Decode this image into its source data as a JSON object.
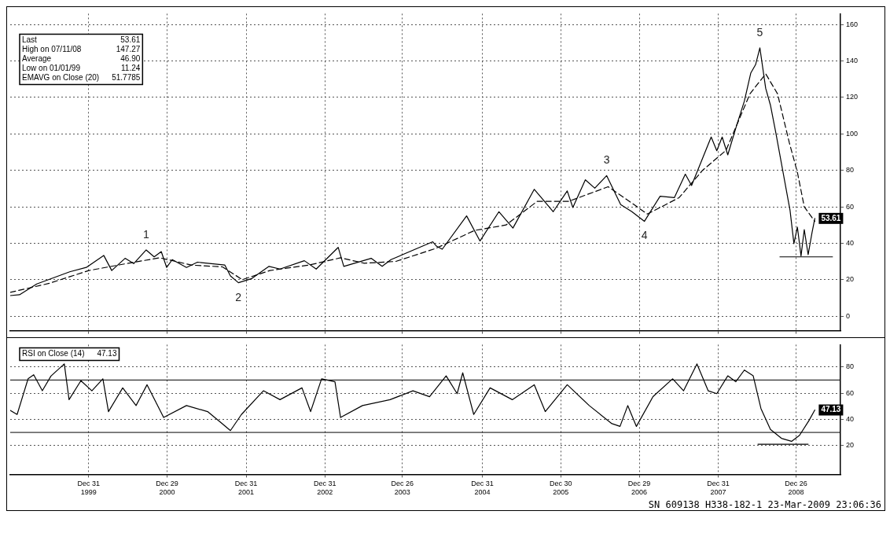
{
  "chart_data": [
    {
      "type": "line",
      "marker": "none",
      "grid": true,
      "legend": false,
      "tick_labels": "y",
      "xlim": [
        "1999-01-01",
        "2009-07-20"
      ],
      "ylim": [
        -8,
        166
      ],
      "xticks": [
        {
          "value": "1999-12-31",
          "label": null
        },
        {
          "value": "2000-12-29",
          "label": null
        },
        {
          "value": "2001-12-31",
          "label": null
        },
        {
          "value": "2002-12-31",
          "label": null
        },
        {
          "value": "2003-12-26",
          "label": null
        },
        {
          "value": "2004-12-31",
          "label": null
        },
        {
          "value": "2005-12-30",
          "label": null
        },
        {
          "value": "2006-12-29",
          "label": null
        },
        {
          "value": "2007-12-31",
          "label": null
        },
        {
          "value": "2008-12-26",
          "label": null
        }
      ],
      "yticks": [
        0,
        20,
        40,
        60,
        80,
        100,
        120,
        140,
        160
      ],
      "series": [
        {
          "color": "#000000",
          "line_style": "solid",
          "x": [
            "1999-01-01",
            "1999-02-13",
            "1999-05-04",
            "1999-10-04",
            "1999-12-20",
            "2000-03-10",
            "2000-04-16",
            "2000-06-17",
            "2000-07-27",
            "2000-09-23",
            "2000-10-30",
            "2000-12-02",
            "2000-12-27",
            "2001-01-22",
            "2001-03-29",
            "2001-05-19",
            "2001-09-23",
            "2001-10-19",
            "2001-11-25",
            "2002-01-26",
            "2002-04-16",
            "2002-06-06",
            "2002-09-27",
            "2002-11-21",
            "2003-03-03",
            "2003-03-29",
            "2003-08-03",
            "2003-09-23",
            "2003-11-03",
            "2004-05-15",
            "2004-06-02",
            "2004-06-28",
            "2004-10-19",
            "2004-12-20",
            "2005-03-18",
            "2005-05-22",
            "2005-08-29",
            "2005-11-25",
            "2006-01-29",
            "2006-02-24",
            "2006-04-23",
            "2006-06-06",
            "2006-07-31",
            "2006-10-04",
            "2006-11-25",
            "2007-01-22",
            "2007-04-05",
            "2007-06-10",
            "2007-07-31",
            "2007-08-29",
            "2007-11-28",
            "2007-12-24",
            "2008-01-18",
            "2008-02-13",
            "2008-03-25",
            "2008-04-30",
            "2008-05-30",
            "2008-06-21",
            "2008-07-11",
            "2008-08-07",
            "2008-08-29",
            "2008-09-23",
            "2008-11-28",
            "2008-12-16",
            "2009-01-01",
            "2009-01-18",
            "2009-02-02",
            "2009-02-20",
            "2009-03-10",
            "2009-03-23"
          ],
          "values": [
            11.24,
            11.7,
            17.6,
            24.3,
            26.7,
            33.3,
            25,
            31.7,
            28.8,
            36.3,
            32.5,
            35.4,
            26.7,
            31,
            26.7,
            29.6,
            28,
            22,
            18.3,
            20.6,
            27.3,
            25.8,
            30.4,
            25.8,
            37.7,
            27.3,
            31.7,
            27.3,
            31,
            40.8,
            38.3,
            36.7,
            55,
            41.2,
            57.3,
            48.3,
            69.6,
            57.3,
            68.7,
            59.6,
            74.8,
            70.2,
            77.1,
            61.2,
            57.3,
            52,
            65.8,
            65,
            77.9,
            71.7,
            98.3,
            90.8,
            98.3,
            88.5,
            104.6,
            118,
            133.5,
            138,
            147.27,
            125,
            115.8,
            100.6,
            58,
            39.8,
            48.9,
            33,
            47.5,
            33.7,
            45.8,
            53.61
          ],
          "value_labels": [
            null,
            null,
            null,
            null,
            null,
            null,
            null,
            null,
            null,
            null,
            null,
            null,
            null,
            null,
            null,
            null,
            null,
            null,
            null,
            null,
            null,
            null,
            null,
            null,
            null,
            null,
            null,
            null,
            null,
            null,
            null,
            null,
            null,
            null,
            null,
            null,
            null,
            null,
            null,
            null,
            null,
            null,
            null,
            null,
            null,
            null,
            null,
            null,
            null,
            null,
            null,
            null,
            null,
            null,
            null,
            null,
            null,
            null,
            null,
            null,
            null,
            null,
            null,
            null,
            null,
            null,
            null,
            null,
            null,
            "53.61"
          ]
        },
        {
          "color": "#000000",
          "line_style": "dashed",
          "x": [
            "1999-01-01",
            "1999-07-02",
            "2000-01-01",
            "2000-07-02",
            "2000-11-25",
            "2001-04-20",
            "2001-09-12",
            "2001-12-13",
            "2002-04-20",
            "2002-10-19",
            "2003-03-14",
            "2003-07-02",
            "2003-11-25",
            "2004-05-26",
            "2004-11-25",
            "2005-04-20",
            "2005-09-12",
            "2006-02-05",
            "2006-08-07",
            "2006-11-25",
            "2007-02-05",
            "2007-07-02",
            "2007-10-19",
            "2008-02-05",
            "2008-05-26",
            "2008-08-07",
            "2008-10-01",
            "2008-11-25",
            "2009-01-01",
            "2009-02-02",
            "2009-03-23"
          ],
          "values": [
            13,
            18,
            25,
            29,
            32,
            28,
            27,
            20,
            25,
            28,
            32,
            29,
            30,
            37,
            47,
            50,
            63,
            63,
            71,
            62,
            56,
            65,
            80,
            91,
            122,
            133,
            122,
            95,
            79,
            60,
            52
          ]
        },
        {
          "color": "#000000",
          "line_style": "solid",
          "x": [
            "2008-10-12",
            "2009-06-13"
          ],
          "values": [
            32.5,
            32.5
          ]
        }
      ],
      "annotations": [
        "Last 53.61",
        "High on 07/11/08 147.27",
        "Average 46.90",
        "Low on 01/01/99 11.24",
        "EMAVG on Close (20) 51.7785",
        {
          "text": "1",
          "x": "2000-09-23",
          "y": 36.3
        },
        {
          "text": "2",
          "x": "2001-11-25",
          "y": 18.3
        },
        {
          "text": "3",
          "x": "2006-07-31",
          "y": 77.1
        },
        {
          "text": "4",
          "x": "2007-01-22",
          "y": 52
        },
        {
          "text": "5",
          "x": "2008-07-11",
          "y": 147.27
        }
      ]
    },
    {
      "type": "line",
      "marker": "none",
      "grid": true,
      "legend": false,
      "xlim": [
        "1999-01-01",
        "2009-07-20"
      ],
      "ylim": [
        -2,
        97
      ],
      "xticks": [
        {
          "value": "1999-12-31",
          "label": "Dec 31 1999"
        },
        {
          "value": "2000-12-29",
          "label": "Dec 29 2000"
        },
        {
          "value": "2001-12-31",
          "label": "Dec 31 2001"
        },
        {
          "value": "2002-12-31",
          "label": "Dec 31 2002"
        },
        {
          "value": "2003-12-26",
          "label": "Dec 26 2003"
        },
        {
          "value": "2004-12-31",
          "label": "Dec 31 2004"
        },
        {
          "value": "2005-12-30",
          "label": "Dec 30 2005"
        },
        {
          "value": "2006-12-29",
          "label": "Dec 29 2006"
        },
        {
          "value": "2007-12-31",
          "label": "Dec 31 2007"
        },
        {
          "value": "2008-12-26",
          "label": "Dec 26 2008"
        }
      ],
      "yticks": [
        20,
        40,
        60,
        80
      ],
      "series": [
        {
          "color": "#000000",
          "line_style": "solid",
          "x": [
            "1999-01-01",
            "1999-02-02",
            "1999-03-25",
            "1999-04-20",
            "1999-05-30",
            "1999-07-09",
            "1999-09-09",
            "1999-10-01",
            "1999-11-25",
            "2000-01-15",
            "2000-03-06",
            "2000-04-01",
            "2000-06-06",
            "2000-08-07",
            "2000-09-27",
            "2000-12-13",
            "2001-03-29",
            "2001-07-05",
            "2001-09-09",
            "2001-10-19",
            "2001-12-09",
            "2002-03-21",
            "2002-06-06",
            "2002-09-16",
            "2002-10-26",
            "2002-12-16",
            "2003-02-16",
            "2003-03-14",
            "2003-06-24",
            "2003-10-30",
            "2004-02-13",
            "2004-04-30",
            "2004-07-16",
            "2004-09-05",
            "2004-10-01",
            "2004-11-21",
            "2005-02-05",
            "2005-05-19",
            "2005-08-29",
            "2005-10-19",
            "2006-01-29",
            "2006-05-11",
            "2006-08-22",
            "2006-10-01",
            "2006-11-06",
            "2006-12-16",
            "2007-03-03",
            "2007-06-02",
            "2007-07-23",
            "2007-09-23",
            "2007-11-14",
            "2007-12-24",
            "2008-02-13",
            "2008-03-21",
            "2008-04-30",
            "2008-06-10",
            "2008-07-16",
            "2008-08-29",
            "2008-10-19",
            "2008-12-05",
            "2009-01-11",
            "2009-02-24",
            "2009-03-23"
          ],
          "values": [
            46.8,
            43.7,
            71,
            74,
            61.8,
            73,
            82.3,
            55,
            69.5,
            61.8,
            70.9,
            45.9,
            64,
            50.5,
            66.4,
            41.4,
            50.5,
            45.9,
            36.9,
            31.4,
            43.7,
            61.8,
            55,
            64,
            45.9,
            70.9,
            68.7,
            41.4,
            50.5,
            55,
            61.8,
            57.3,
            73.2,
            59.6,
            75.5,
            43.7,
            64,
            55,
            66.4,
            45.9,
            66.4,
            50.5,
            36.9,
            34.6,
            50.5,
            34.6,
            57.3,
            70.9,
            61.8,
            82.3,
            61.8,
            59.6,
            73.2,
            68.7,
            77.6,
            73.2,
            48.2,
            32.3,
            25.5,
            23.2,
            27.8,
            39.1,
            47.13
          ],
          "value_labels": [
            null,
            null,
            null,
            null,
            null,
            null,
            null,
            null,
            null,
            null,
            null,
            null,
            null,
            null,
            null,
            null,
            null,
            null,
            null,
            null,
            null,
            null,
            null,
            null,
            null,
            null,
            null,
            null,
            null,
            null,
            null,
            null,
            null,
            null,
            null,
            null,
            null,
            null,
            null,
            null,
            null,
            null,
            null,
            null,
            null,
            null,
            null,
            null,
            null,
            null,
            null,
            null,
            null,
            null,
            null,
            null,
            null,
            null,
            null,
            null,
            null,
            null,
            "47.13"
          ]
        },
        {
          "color": "#000000",
          "line_style": "solid",
          "x": [
            "2008-07-02",
            "2009-02-20"
          ],
          "values": [
            21,
            21
          ]
        }
      ],
      "ref_lines": [
        {
          "axis": "y",
          "value": 70,
          "color": "#000000"
        },
        {
          "axis": "y",
          "value": 30,
          "color": "#000000"
        }
      ],
      "annotations": [
        "RSI on Close (14) 47.13",
        "SN 609138 H338-182-1 23-Mar-2009 23:06:36"
      ]
    }
  ]
}
